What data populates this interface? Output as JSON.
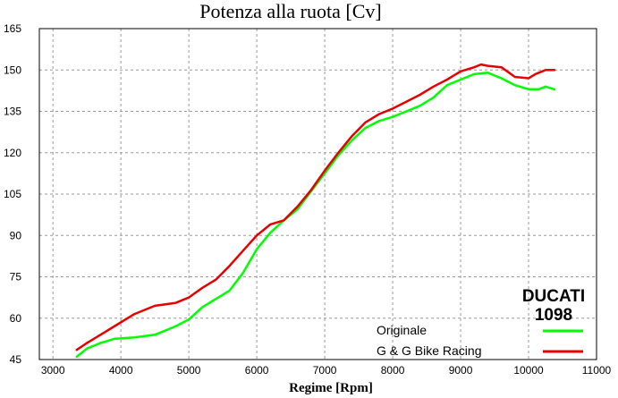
{
  "chart_data": {
    "type": "line",
    "title": "Potenza alla ruota [Cv]",
    "xlabel": "Regime [Rpm]",
    "ylabel": "",
    "xlim": [
      2800,
      11000
    ],
    "ylim": [
      45,
      165
    ],
    "xticks": [
      3000,
      4000,
      5000,
      6000,
      7000,
      8000,
      9000,
      10000,
      11000
    ],
    "yticks": [
      45,
      60,
      75,
      90,
      105,
      120,
      135,
      150,
      165
    ],
    "grid": true,
    "legend_position": "bottom-right",
    "brand_lines": [
      "DUCATI",
      "1098"
    ],
    "series": [
      {
        "name": "Originale",
        "color": "#00ff00",
        "x": [
          3350,
          3500,
          3700,
          3900,
          4200,
          4500,
          4800,
          5000,
          5200,
          5400,
          5600,
          5800,
          6000,
          6200,
          6400,
          6600,
          6800,
          7000,
          7200,
          7400,
          7600,
          7800,
          8000,
          8200,
          8400,
          8600,
          8800,
          9000,
          9200,
          9400,
          9600,
          9800,
          10000,
          10150,
          10250,
          10380
        ],
        "y": [
          46,
          49,
          51,
          52.5,
          53,
          54,
          57,
          59.5,
          64,
          67,
          70,
          76.5,
          85,
          91,
          95.5,
          99.5,
          106,
          112.5,
          119,
          124.5,
          129,
          131.5,
          133,
          135,
          137,
          140,
          144.5,
          146.5,
          148.5,
          149,
          147,
          144.5,
          143,
          143,
          144,
          143
        ]
      },
      {
        "name": "G & G Bike Racing",
        "color": "#e60000",
        "x": [
          3350,
          3500,
          3700,
          3900,
          4200,
          4500,
          4800,
          5000,
          5200,
          5400,
          5600,
          5800,
          6000,
          6200,
          6400,
          6600,
          6800,
          7000,
          7200,
          7400,
          7600,
          7800,
          8000,
          8200,
          8400,
          8600,
          8800,
          9000,
          9200,
          9300,
          9400,
          9600,
          9800,
          10000,
          10100,
          10250,
          10380
        ],
        "y": [
          48.5,
          51,
          54,
          57,
          61.5,
          64.5,
          65.5,
          67.5,
          71,
          74,
          79,
          84.5,
          90,
          94,
          95.5,
          100.5,
          106.5,
          113.5,
          120,
          126,
          131,
          134,
          136,
          138.5,
          141,
          144,
          146.5,
          149.5,
          151,
          152,
          151.5,
          151,
          147.5,
          147,
          148.5,
          150,
          150
        ]
      }
    ]
  }
}
